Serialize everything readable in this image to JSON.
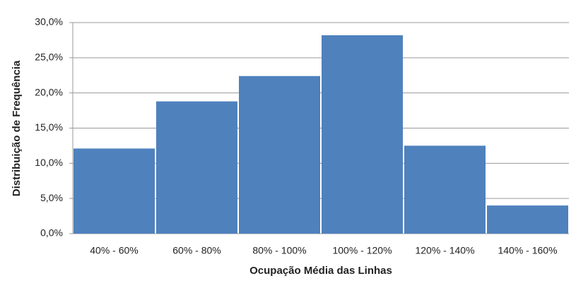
{
  "chart_data": {
    "type": "bar",
    "x_label": "Ocupação Média das Linhas",
    "y_label": "Distribuição de Frequência",
    "categories": [
      "40% - 60%",
      "60% - 80%",
      "80% - 100%",
      "100% - 120%",
      "120% - 140%",
      "140% - 160%"
    ],
    "values": [
      12.1,
      18.8,
      22.4,
      28.2,
      12.5,
      4.0
    ],
    "color": "#4f81bd",
    "ylim": [
      0,
      30
    ],
    "yticks": [
      {
        "value": 0,
        "label": "0,0%"
      },
      {
        "value": 5,
        "label": "5,0%"
      },
      {
        "value": 10,
        "label": "10,0%"
      },
      {
        "value": 15,
        "label": "15,0%"
      },
      {
        "value": 20,
        "label": "20,0%"
      },
      {
        "value": 25,
        "label": "25,0%"
      },
      {
        "value": 30,
        "label": "30,0%"
      }
    ],
    "grid": true
  }
}
